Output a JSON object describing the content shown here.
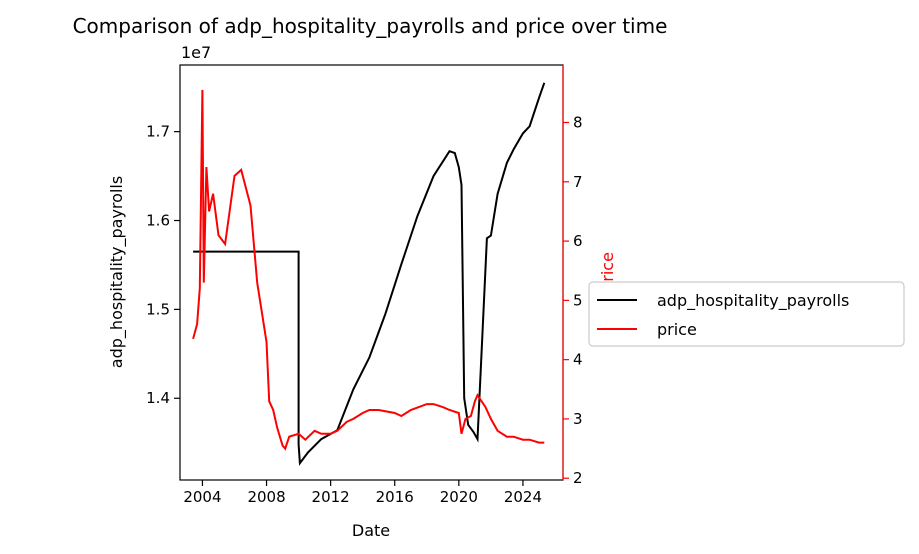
{
  "chart_data": {
    "type": "line",
    "title": "Comparison of adp_hospitality_payrolls and price over time",
    "xlabel": "Date",
    "x_axis": {
      "min": 2002.6,
      "max": 2026.5,
      "ticks": [
        2004,
        2008,
        2012,
        2016,
        2020,
        2024
      ],
      "tick_labels": [
        "2004",
        "2008",
        "2012",
        "2016",
        "2020",
        "2024"
      ]
    },
    "y_left": {
      "label": "adp_hospitality_payrolls",
      "offset_text": "1e7",
      "min": 13080000,
      "max": 17750000,
      "ticks": [
        14000000,
        15000000,
        16000000,
        17000000
      ],
      "tick_labels": [
        "1.4",
        "1.5",
        "1.6",
        "1.7"
      ],
      "color": "#000000"
    },
    "y_right": {
      "label": "price",
      "min": 1.97,
      "max": 8.97,
      "ticks": [
        2,
        3,
        4,
        5,
        6,
        7,
        8
      ],
      "tick_labels": [
        "2",
        "3",
        "4",
        "5",
        "6",
        "7",
        "8"
      ],
      "color": "#ff0000"
    },
    "legend": {
      "placement": "outside-right"
    },
    "grid": false,
    "series": [
      {
        "name": "adp_hospitality_payrolls",
        "axis": "left",
        "color": "#000000",
        "points": [
          [
            "2003-06",
            15650000
          ],
          [
            "2010-01",
            15650000
          ],
          [
            "2010-01",
            13480000
          ],
          [
            "2010-02",
            13270000
          ],
          [
            "2010-08",
            13390000
          ],
          [
            "2011-06",
            13540000
          ],
          [
            "2012-06",
            13640000
          ],
          [
            "2013-06",
            14100000
          ],
          [
            "2014-06",
            14460000
          ],
          [
            "2015-06",
            14950000
          ],
          [
            "2016-06",
            15510000
          ],
          [
            "2017-06",
            16050000
          ],
          [
            "2018-06",
            16500000
          ],
          [
            "2019-06",
            16780000
          ],
          [
            "2019-10",
            16760000
          ],
          [
            "2020-01",
            16600000
          ],
          [
            "2020-03",
            16400000
          ],
          [
            "2020-05",
            14000000
          ],
          [
            "2020-08",
            13700000
          ],
          [
            "2020-12",
            13620000
          ],
          [
            "2021-03",
            13540000
          ],
          [
            "2021-06",
            14500000
          ],
          [
            "2021-10",
            15800000
          ],
          [
            "2022-01",
            15830000
          ],
          [
            "2022-06",
            16300000
          ],
          [
            "2023-01",
            16650000
          ],
          [
            "2023-06",
            16800000
          ],
          [
            "2024-01",
            16980000
          ],
          [
            "2024-06",
            17060000
          ],
          [
            "2025-01",
            17380000
          ],
          [
            "2025-05",
            17550000
          ]
        ]
      },
      {
        "name": "price",
        "axis": "right",
        "color": "#ff0000",
        "points": [
          [
            "2003-06",
            4.35
          ],
          [
            "2003-09",
            4.6
          ],
          [
            "2003-11",
            5.2
          ],
          [
            "2004-01",
            8.55
          ],
          [
            "2004-02",
            5.3
          ],
          [
            "2004-04",
            7.25
          ],
          [
            "2004-06",
            6.5
          ],
          [
            "2004-09",
            6.8
          ],
          [
            "2005-01",
            6.1
          ],
          [
            "2005-06",
            5.95
          ],
          [
            "2006-01",
            7.1
          ],
          [
            "2006-06",
            7.2
          ],
          [
            "2007-01",
            6.6
          ],
          [
            "2007-06",
            5.3
          ],
          [
            "2008-01",
            4.3
          ],
          [
            "2008-03",
            3.3
          ],
          [
            "2008-06",
            3.15
          ],
          [
            "2008-09",
            2.85
          ],
          [
            "2009-01",
            2.55
          ],
          [
            "2009-03",
            2.5
          ],
          [
            "2009-06",
            2.7
          ],
          [
            "2010-01",
            2.75
          ],
          [
            "2010-06",
            2.65
          ],
          [
            "2011-01",
            2.8
          ],
          [
            "2011-06",
            2.75
          ],
          [
            "2012-01",
            2.75
          ],
          [
            "2012-06",
            2.8
          ],
          [
            "2013-01",
            2.95
          ],
          [
            "2013-06",
            3.0
          ],
          [
            "2014-01",
            3.1
          ],
          [
            "2014-06",
            3.15
          ],
          [
            "2015-01",
            3.15
          ],
          [
            "2016-01",
            3.1
          ],
          [
            "2016-06",
            3.05
          ],
          [
            "2017-01",
            3.15
          ],
          [
            "2018-01",
            3.25
          ],
          [
            "2018-06",
            3.25
          ],
          [
            "2019-01",
            3.2
          ],
          [
            "2019-06",
            3.15
          ],
          [
            "2020-01",
            3.1
          ],
          [
            "2020-03",
            2.75
          ],
          [
            "2020-06",
            3.0
          ],
          [
            "2020-10",
            3.05
          ],
          [
            "2021-01",
            3.3
          ],
          [
            "2021-03",
            3.4
          ],
          [
            "2021-09",
            3.2
          ],
          [
            "2022-01",
            3.0
          ],
          [
            "2022-06",
            2.8
          ],
          [
            "2023-01",
            2.7
          ],
          [
            "2023-06",
            2.7
          ],
          [
            "2024-01",
            2.65
          ],
          [
            "2024-06",
            2.65
          ],
          [
            "2025-01",
            2.6
          ],
          [
            "2025-05",
            2.6
          ]
        ]
      }
    ]
  }
}
